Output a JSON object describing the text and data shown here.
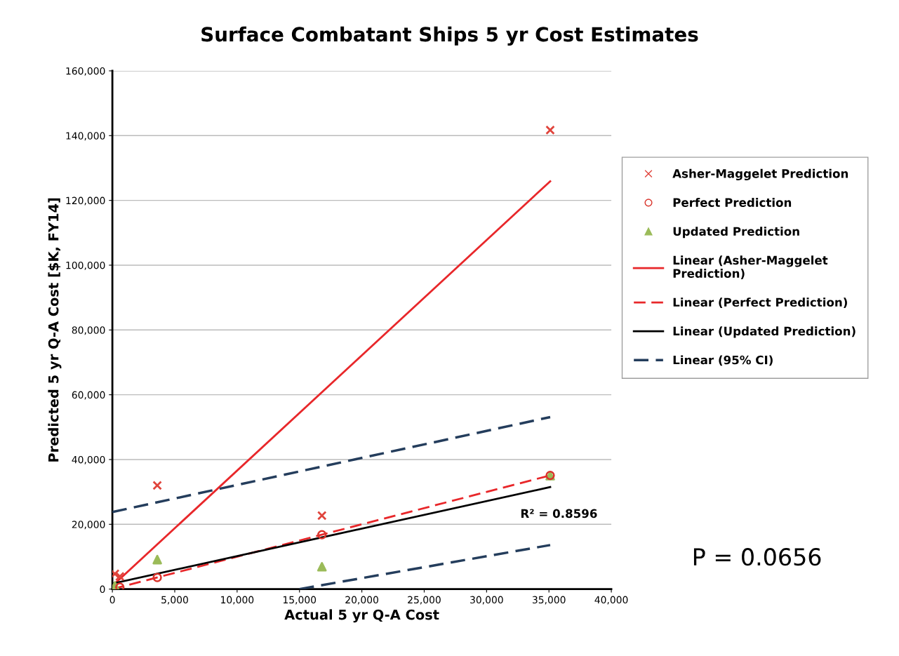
{
  "chart_data": {
    "type": "scatter",
    "title": "Surface Combatant Ships 5 yr Cost Estimates",
    "xlabel": "Actual 5 yr Q-A Cost",
    "ylabel": "Predicted 5 yr Q-A Cost [$K, FY14]",
    "x": [
      200,
      600,
      3600,
      16800,
      35100
    ],
    "series": [
      {
        "name": "Asher-Maggelet Prediction",
        "type": "scatter",
        "marker": "cross",
        "color": "#e0443c",
        "values": [
          4700,
          3900,
          32000,
          22700,
          141700
        ]
      },
      {
        "name": "Perfect Prediction",
        "type": "scatter",
        "marker": "circle",
        "color": "#d9342b",
        "x": [
          600,
          3600,
          16800,
          35100
        ],
        "values": [
          600,
          3600,
          16800,
          35100
        ]
      },
      {
        "name": "Updated Prediction",
        "type": "scatter",
        "marker": "triangle",
        "color": "#9bbb59",
        "x": [
          200,
          3600,
          16800,
          35100
        ],
        "values": [
          1000,
          9100,
          6900,
          35000
        ]
      },
      {
        "name": "Linear (Asher-Maggelet Prediction)",
        "type": "line",
        "line_style": "solid",
        "color": "#e8272a",
        "x": [
          0,
          35100
        ],
        "values": [
          1000,
          125900
        ]
      },
      {
        "name": "Linear (Perfect Prediction)",
        "type": "line",
        "line_style": "dashed",
        "color": "#e8272a",
        "x": [
          0,
          35100
        ],
        "values": [
          0,
          35100
        ]
      },
      {
        "name": "Linear (Updated Prediction)",
        "type": "line",
        "line_style": "solid",
        "color": "#000000",
        "x": [
          0,
          35100
        ],
        "values": [
          1700,
          31500
        ]
      },
      {
        "name": "Linear (95% CI)",
        "type": "line",
        "line_style": "dashed",
        "color": "#243d5c",
        "x": [
          0,
          35100
        ],
        "values": [
          23800,
          53100
        ]
      },
      {
        "type": "line",
        "line_style": "dashed",
        "color": "#243d5c",
        "x": [
          15000,
          35100
        ],
        "values": [
          0,
          13600
        ]
      }
    ],
    "xlim": [
      0,
      40000
    ],
    "ylim": [
      0,
      160000
    ],
    "xticks": [
      0,
      {
        "value": 5000,
        "label": "5,000"
      },
      {
        "value": 10000,
        "label": "10,000"
      },
      {
        "value": 15000,
        "label": "15,000"
      },
      {
        "value": 20000,
        "label": "20,000"
      },
      {
        "value": 25000,
        "label": "25,000"
      },
      {
        "value": 30000,
        "label": "30,000"
      },
      {
        "value": 35000,
        "label": "35,000"
      },
      {
        "value": 40000,
        "label": "40,000"
      }
    ],
    "yticks": [
      0,
      {
        "value": 20000,
        "label": "20,000"
      },
      {
        "value": 40000,
        "label": "40,000"
      },
      {
        "value": 60000,
        "label": "60,000"
      },
      {
        "value": 80000,
        "label": "80,000"
      },
      {
        "value": 100000,
        "label": "100,000"
      },
      {
        "value": 120000,
        "label": "120,000"
      },
      {
        "value": 140000,
        "label": "140,000"
      },
      {
        "value": 160000,
        "label": "160,000"
      }
    ],
    "grid": "y",
    "legend": "right",
    "annotations": [
      "R² = 0.8596",
      "P = 0.0656"
    ]
  }
}
